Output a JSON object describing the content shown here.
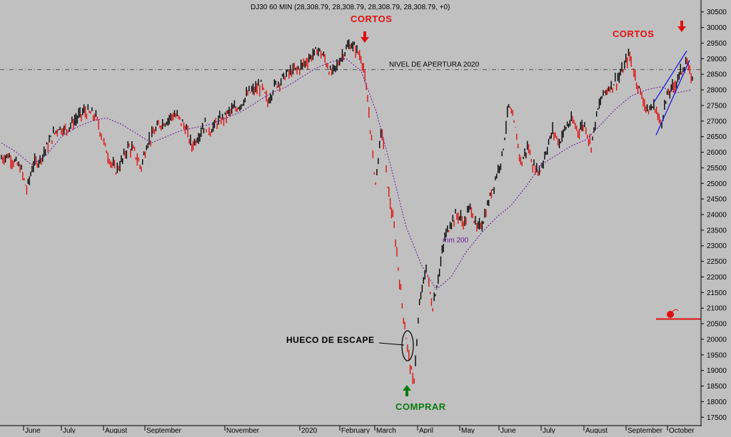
{
  "header": {
    "title": "DJ30 60 MIN (28,308.79, 28,308.79, 28,308.79, 28,308.79, +0)"
  },
  "chart_data": {
    "type": "line",
    "title": "DJ30 60 MIN (28,308.79, 28,308.79, 28,308.79, 28,308.79, +0)",
    "y_axis_side": "right",
    "ylim": [
      17300,
      30700
    ],
    "y_ticks": [
      17500,
      18000,
      18500,
      19000,
      19500,
      20000,
      20500,
      21000,
      21500,
      22000,
      22500,
      23000,
      23500,
      24000,
      24500,
      25000,
      25500,
      26000,
      26500,
      27000,
      27500,
      28000,
      28500,
      29000,
      29500,
      30000,
      30500
    ],
    "x_tick_labels": [
      "June",
      "July",
      "August",
      "September",
      "November",
      "2020",
      "February",
      "March",
      "April",
      "May",
      "June",
      "July",
      "August",
      "September",
      "October"
    ],
    "series": [
      {
        "name": "DJ30 60 MIN",
        "color": "#000000",
        "down_color": "#e01010",
        "values": [
          25800,
          25900,
          25700,
          25500,
          24800,
          25600,
          25750,
          26100,
          26500,
          26800,
          26700,
          26900,
          27100,
          27300,
          27250,
          27100,
          26400,
          25800,
          25400,
          25700,
          26200,
          26000,
          25500,
          26300,
          26600,
          26900,
          27000,
          27200,
          27100,
          26800,
          26200,
          26500,
          26900,
          26700,
          26950,
          27100,
          27300,
          27400,
          27600,
          27900,
          28000,
          28150,
          27600,
          28100,
          28300,
          28500,
          28600,
          28700,
          28900,
          29100,
          29300,
          29000,
          28500,
          28800,
          29200,
          29450,
          29300,
          28900,
          27200,
          25000,
          26800,
          24800,
          23500,
          21500,
          19800,
          18500,
          21200,
          22300,
          21000,
          22100,
          23300,
          23800,
          24000,
          23700,
          24300,
          23500,
          23800,
          24500,
          25200,
          25900,
          27500,
          26800,
          25600,
          26200,
          25500,
          25400,
          26100,
          26700,
          26300,
          26800,
          27000,
          26700,
          26900,
          26200,
          27300,
          27900,
          28100,
          28300,
          28600,
          29150,
          28400,
          27800,
          27300,
          27500,
          26900,
          27800,
          28100,
          28500,
          28900,
          28300
        ]
      },
      {
        "name": "mm 200",
        "color": "#6a1a9a",
        "values": [
          26300,
          26000,
          25600,
          25900,
          26500,
          26800,
          27000,
          27100,
          26900,
          26600,
          26300,
          26500,
          26700,
          26800,
          26900,
          27100,
          27300,
          27600,
          27900,
          28100,
          28400,
          28700,
          28900,
          29000,
          28600,
          27300,
          25500,
          23600,
          22400,
          21600,
          22000,
          22800,
          23400,
          23900,
          24300,
          24900,
          25600,
          25900,
          26200,
          26400,
          26900,
          27400,
          27800,
          28000,
          28100,
          27900,
          28000
        ]
      }
    ],
    "reference_line": {
      "label": "NIVEL DE APERTURA 2020",
      "value": 28650,
      "style": "dash-dot"
    },
    "annotations": {
      "cortos_1": "CORTOS",
      "cortos_2": "CORTOS",
      "comprar": "COMPRAR",
      "hueco": "HUECO DE ESCAPE",
      "ma_label": "mm 200",
      "opening_level": "NIVEL DE APERTURA 2020"
    },
    "channel": {
      "color": "#1a1ae0"
    },
    "current_level_line": {
      "value": 20650,
      "color": "#e01010"
    },
    "grid": false
  }
}
